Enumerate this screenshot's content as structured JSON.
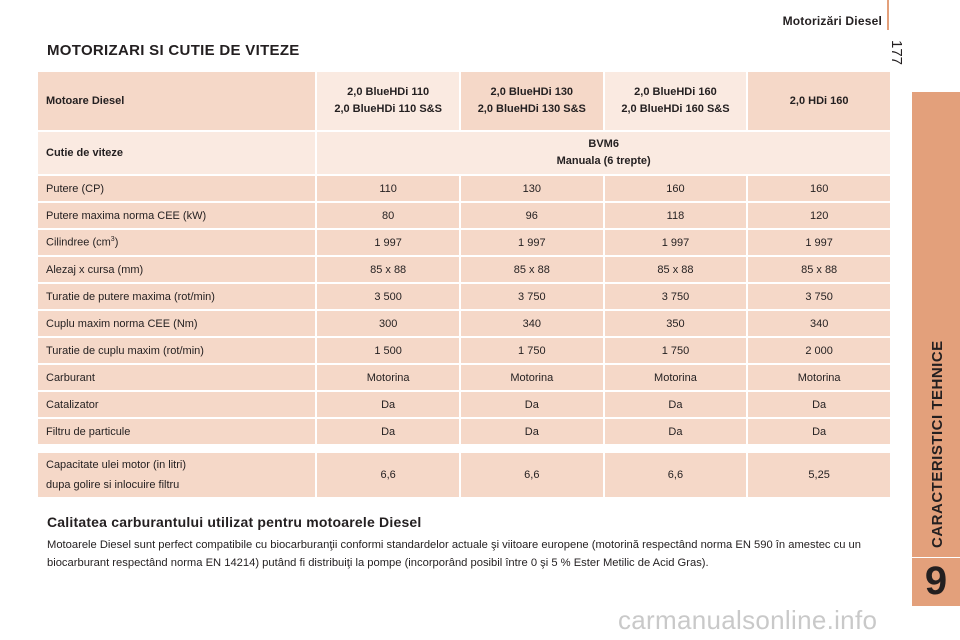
{
  "header": {
    "title": "Motorizări Diesel",
    "page_number": "177"
  },
  "side_tab": {
    "label": "CARACTERISTICI TEHNICE",
    "chapter": "9",
    "color": "#e3a07b"
  },
  "section_title": "MOTORIZARI SI CUTIE DE VITEZE",
  "table": {
    "head": {
      "label": "Motoare Diesel",
      "columns": [
        [
          "2,0 BlueHDi 110",
          "2,0 BlueHDi 110 S&S"
        ],
        [
          "2,0 BlueHDi 130",
          "2,0 BlueHDi 130 S&S"
        ],
        [
          "2,0 BlueHDi 160",
          "2,0 BlueHDi 160 S&S"
        ],
        [
          "2,0 HDi 160"
        ]
      ]
    },
    "gearbox": {
      "label": "Cutie de viteze",
      "line1": "BVM6",
      "line2": "Manuala (6 trepte)"
    },
    "rows": [
      {
        "label": "Putere (CP)",
        "values": [
          "110",
          "130",
          "160",
          "160"
        ]
      },
      {
        "label": "Putere maxima norma CEE (kW)",
        "values": [
          "80",
          "96",
          "118",
          "120"
        ]
      },
      {
        "label": "Cilindree (cm",
        "label_sup": "3",
        "label_end": ")",
        "values": [
          "1 997",
          "1 997",
          "1 997",
          "1 997"
        ]
      },
      {
        "label": "Alezaj x cursa (mm)",
        "values": [
          "85 x 88",
          "85 x 88",
          "85 x 88",
          "85 x 88"
        ]
      },
      {
        "label": "Turatie de putere maxima (rot/min)",
        "values": [
          "3 500",
          "3 750",
          "3 750",
          "3 750"
        ]
      },
      {
        "label": "Cuplu maxim norma CEE (Nm)",
        "values": [
          "300",
          "340",
          "350",
          "340"
        ]
      },
      {
        "label": "Turatie de cuplu maxim (rot/min)",
        "values": [
          "1 500",
          "1 750",
          "1 750",
          "2 000"
        ]
      },
      {
        "label": "Carburant",
        "values": [
          "Motorina",
          "Motorina",
          "Motorina",
          "Motorina"
        ]
      },
      {
        "label": "Catalizator",
        "values": [
          "Da",
          "Da",
          "Da",
          "Da"
        ]
      },
      {
        "label": "Filtru de particule",
        "values": [
          "Da",
          "Da",
          "Da",
          "Da"
        ]
      }
    ],
    "oil": {
      "label_line1": "Capacitate ulei motor (in litri)",
      "label_line2": "dupa golire si inlocuire filtru",
      "values": [
        "6,6",
        "6,6",
        "6,6",
        "5,25"
      ]
    }
  },
  "fuel_quality": {
    "title": "Calitatea carburantului utilizat pentru motoarele Diesel",
    "text": "Motoarele Diesel sunt perfect compatibile cu biocarburanţii conformi standardelor actuale şi viitoare europene (motorină respectând norma EN 590 în amestec cu un biocarburant respectând norma EN 14214) putând fi distribuiţi la pompe (incorporând posibil între 0 şi 5 % Ester Metilic de Acid Gras)."
  },
  "watermark": "carmanualsonline.info",
  "colors": {
    "cell_dark": "#f5d8c8",
    "cell_light": "#faeae1",
    "accent": "#e3a07b"
  }
}
